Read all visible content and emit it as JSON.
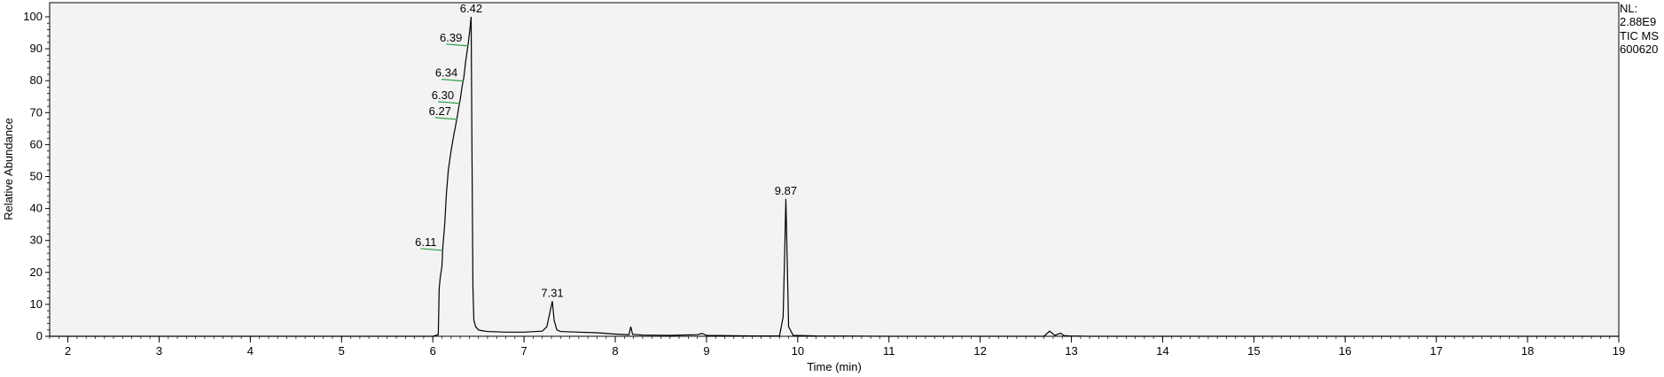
{
  "chart_data": {
    "type": "line",
    "title": "",
    "xlabel": "Time (min)",
    "ylabel": "Relative Abundance",
    "xlim": [
      1.8,
      19.0
    ],
    "ylim": [
      0,
      100
    ],
    "x_ticks": [
      2,
      3,
      4,
      5,
      6,
      7,
      8,
      9,
      10,
      11,
      12,
      13,
      14,
      15,
      16,
      17,
      18,
      19
    ],
    "y_ticks": [
      0,
      10,
      20,
      30,
      40,
      50,
      60,
      70,
      80,
      90,
      100
    ],
    "grid": false,
    "colors": {
      "trace": "#000000",
      "plot_bg": "#f3f3f3",
      "marker": "#2e9e48"
    },
    "info": [
      "NL:",
      "2.88E9",
      "TIC  MS",
      "600620"
    ],
    "series": [
      {
        "x": [
          1.8,
          6.0,
          6.06,
          6.07,
          6.08,
          6.1,
          6.11,
          6.13,
          6.15,
          6.17,
          6.2,
          6.23,
          6.25,
          6.27,
          6.28,
          6.3,
          6.32,
          6.34,
          6.36,
          6.39,
          6.41,
          6.42,
          6.43,
          6.44,
          6.45,
          6.47,
          6.5,
          6.55,
          6.6,
          6.8,
          7.0,
          7.2,
          7.25,
          7.28,
          7.31,
          7.33,
          7.36,
          7.4,
          7.6,
          7.8,
          8.0,
          8.15,
          8.17,
          8.19,
          8.3,
          8.6,
          8.9,
          8.95,
          9.0,
          9.5,
          9.8,
          9.84,
          9.86,
          9.87,
          9.88,
          9.9,
          9.95,
          10.2,
          11.0,
          12.7,
          12.76,
          12.82,
          12.88,
          12.92,
          12.98,
          13.2,
          15.0,
          17.0,
          19.0
        ],
        "y": [
          0,
          0,
          0.5,
          15,
          18,
          22,
          28,
          35,
          45,
          52,
          58,
          63,
          66,
          69,
          71,
          74,
          78,
          81,
          86,
          92,
          97,
          100,
          55,
          15,
          5,
          3,
          2,
          1.7,
          1.5,
          1.3,
          1.3,
          1.6,
          3,
          7,
          11,
          5,
          2,
          1.5,
          1.3,
          1.1,
          0.7,
          0.5,
          3,
          0.6,
          0.4,
          0.3,
          0.5,
          0.9,
          0.3,
          0.1,
          0.1,
          6,
          30,
          43,
          30,
          3,
          0.3,
          0.1,
          0,
          0,
          1.6,
          0.3,
          1.0,
          0.2,
          0.1,
          0,
          0,
          0,
          0
        ]
      }
    ],
    "peaks": [
      {
        "x": 6.42,
        "y": 100,
        "label": "6.42"
      },
      {
        "x": 6.39,
        "y": 92,
        "label": "6.39"
      },
      {
        "x": 6.34,
        "y": 81,
        "label": "6.34"
      },
      {
        "x": 6.3,
        "y": 74,
        "label": "6.30"
      },
      {
        "x": 6.27,
        "y": 69,
        "label": "6.27"
      },
      {
        "x": 6.11,
        "y": 28,
        "label": "6.11"
      },
      {
        "x": 7.31,
        "y": 11,
        "label": "7.31"
      },
      {
        "x": 9.87,
        "y": 43,
        "label": "9.87"
      }
    ]
  }
}
